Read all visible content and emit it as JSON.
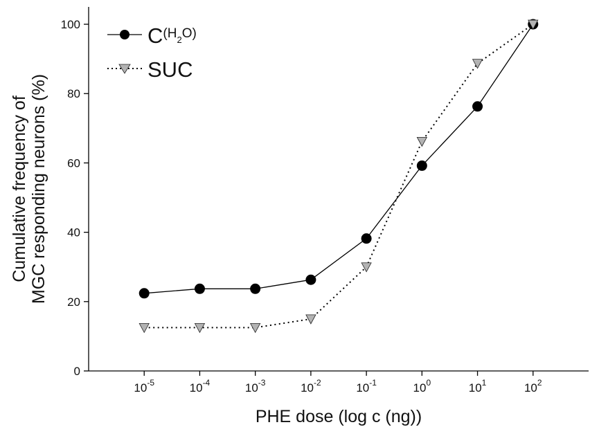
{
  "chart_data": {
    "type": "line",
    "x_axis": {
      "title": "PHE dose (log c (ng))",
      "tick_labels": [
        {
          "base": "10",
          "exp": "-5"
        },
        {
          "base": "10",
          "exp": "-4"
        },
        {
          "base": "10",
          "exp": "-3"
        },
        {
          "base": "10",
          "exp": "-2"
        },
        {
          "base": "10",
          "exp": "-1"
        },
        {
          "base": "10",
          "exp": "0"
        },
        {
          "base": "10",
          "exp": "1"
        },
        {
          "base": "10",
          "exp": "2"
        }
      ],
      "log_scale": true,
      "range_log10": [
        -6,
        3
      ]
    },
    "y_axis": {
      "title_line1": "Cumulative frequency of",
      "title_line2": "MGC responding neurons (%)",
      "range": [
        0,
        105
      ],
      "ticks": [
        0,
        20,
        40,
        60,
        80,
        100
      ]
    },
    "grid": false,
    "legend_position": "top-left",
    "x": [
      1e-05,
      0.0001,
      0.001,
      0.01,
      0.1,
      1,
      10,
      100
    ],
    "series": [
      {
        "name": "C(H2O)",
        "label_main": "C",
        "label_open": "(H",
        "label_sub": "2",
        "label_close": "O)",
        "marker": "circle",
        "line_style": "solid",
        "color": "#000000",
        "values": [
          22.4,
          23.7,
          23.7,
          26.3,
          38.2,
          59.2,
          76.3,
          100
        ]
      },
      {
        "name": "SUC",
        "label_main": "SUC",
        "marker": "triangle-down",
        "line_style": "dotted",
        "color": "#b3b3b3",
        "values": [
          12.5,
          12.5,
          12.5,
          15.0,
          30.0,
          66.2,
          88.7,
          100
        ]
      }
    ]
  }
}
